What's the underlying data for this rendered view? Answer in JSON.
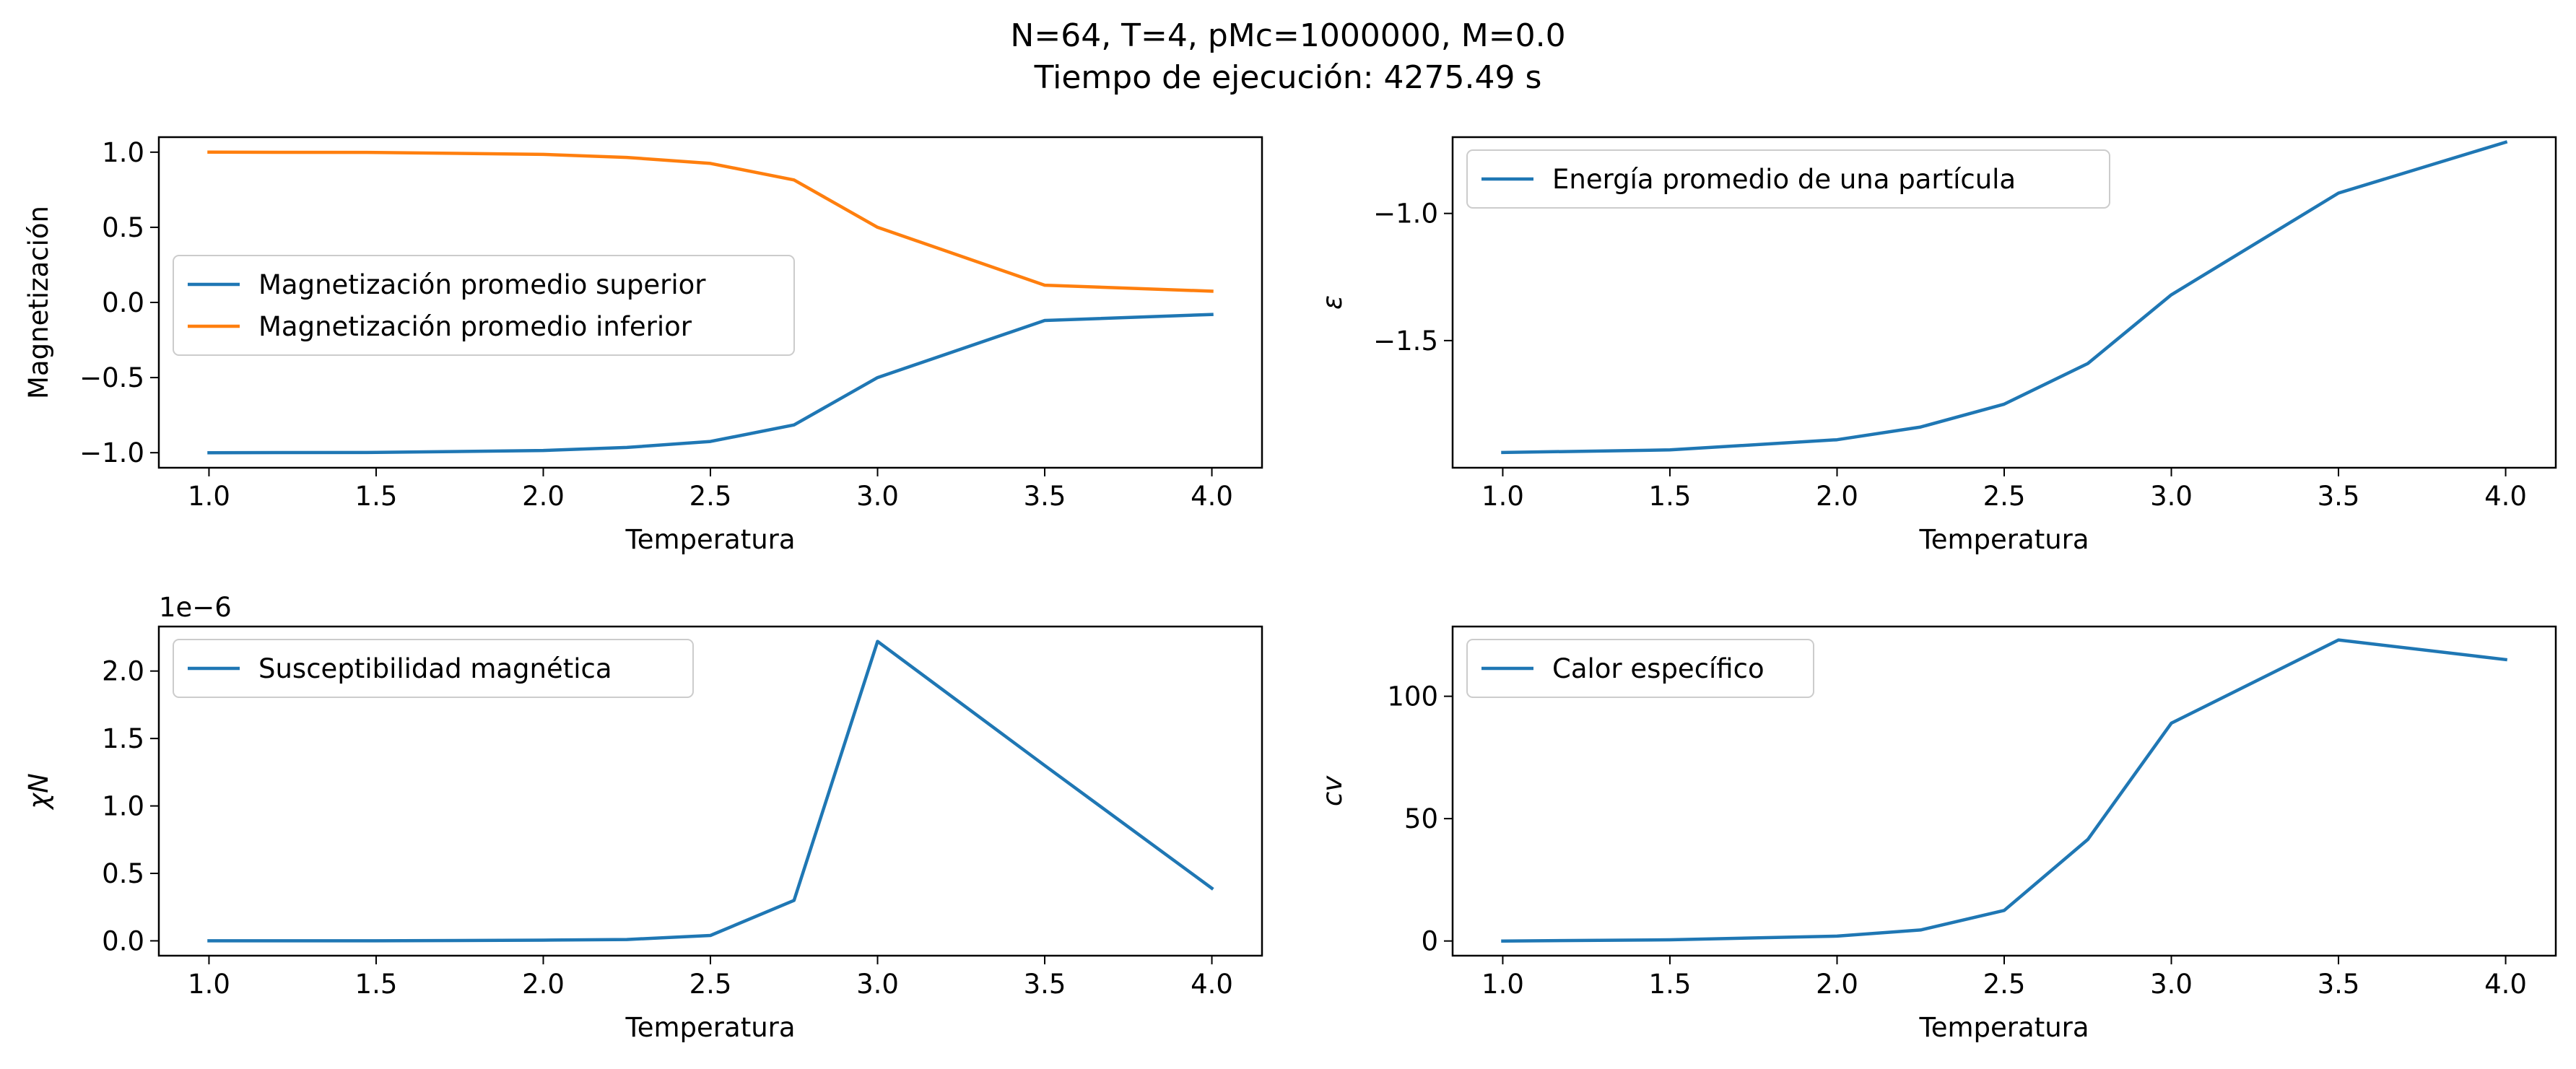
{
  "figure": {
    "title_line1": "N=64, T=4, pMc=1000000, M=0.0",
    "title_line2": "Tiempo de ejecución: 4275.49 s"
  },
  "colors": {
    "blue": "#1f77b4",
    "orange": "#ff7f0e"
  },
  "chart_data": [
    {
      "type": "line",
      "xlabel": "Temperatura",
      "ylabel": "Magnetización",
      "x": [
        1.0,
        1.5,
        2.0,
        2.25,
        2.5,
        2.75,
        3.0,
        3.5,
        4.0
      ],
      "xticks": [
        1.0,
        1.5,
        2.0,
        2.5,
        3.0,
        3.5,
        4.0
      ],
      "xtick_labels": [
        "1.0",
        "1.5",
        "2.0",
        "2.5",
        "3.0",
        "3.5",
        "4.0"
      ],
      "xlim": [
        0.85,
        4.15
      ],
      "ylim": [
        -1.1,
        1.1
      ],
      "yticks": [
        -1.0,
        -0.5,
        0.0,
        0.5,
        1.0
      ],
      "ytick_labels": [
        "−1.0",
        "−0.5",
        "0.0",
        "0.5",
        "1.0"
      ],
      "legend_position": "center-left",
      "series": [
        {
          "name": "Magnetización promedio superior",
          "color": "#1f77b4",
          "values": [
            -1.0,
            -0.998,
            -0.985,
            -0.965,
            -0.925,
            -0.815,
            -0.5,
            -0.12,
            -0.08
          ]
        },
        {
          "name": "Magnetización promedio inferior",
          "color": "#ff7f0e",
          "values": [
            1.0,
            0.998,
            0.985,
            0.965,
            0.925,
            0.815,
            0.5,
            0.115,
            0.075
          ]
        }
      ]
    },
    {
      "type": "line",
      "xlabel": "Temperatura",
      "ylabel": "ε",
      "x": [
        1.0,
        1.5,
        2.0,
        2.25,
        2.5,
        2.75,
        3.0,
        3.5,
        4.0
      ],
      "xticks": [
        1.0,
        1.5,
        2.0,
        2.5,
        3.0,
        3.5,
        4.0
      ],
      "xtick_labels": [
        "1.0",
        "1.5",
        "2.0",
        "2.5",
        "3.0",
        "3.5",
        "4.0"
      ],
      "xlim": [
        0.85,
        4.15
      ],
      "ylim": [
        -2.0,
        -0.7
      ],
      "yticks": [
        -1.5,
        -1.0
      ],
      "ytick_labels": [
        "−1.5",
        "−1.0"
      ],
      "legend_position": "upper-left",
      "series": [
        {
          "name": "Energía promedio de una partícula",
          "color": "#1f77b4",
          "values": [
            -1.94,
            -1.93,
            -1.89,
            -1.84,
            -1.75,
            -1.59,
            -1.32,
            -0.92,
            -0.72
          ]
        }
      ]
    },
    {
      "type": "line",
      "xlabel": "Temperatura",
      "ylabel": "χN",
      "offset_text": "1e−6",
      "x": [
        1.0,
        1.5,
        2.0,
        2.25,
        2.5,
        2.75,
        3.0,
        3.5,
        4.0
      ],
      "xticks": [
        1.0,
        1.5,
        2.0,
        2.5,
        3.0,
        3.5,
        4.0
      ],
      "xtick_labels": [
        "1.0",
        "1.5",
        "2.0",
        "2.5",
        "3.0",
        "3.5",
        "4.0"
      ],
      "xlim": [
        0.85,
        4.15
      ],
      "ylim": [
        -0.11,
        2.33
      ],
      "yticks": [
        0.0,
        0.5,
        1.0,
        1.5,
        2.0
      ],
      "ytick_labels": [
        "0.0",
        "0.5",
        "1.0",
        "1.5",
        "2.0"
      ],
      "legend_position": "upper-left",
      "series": [
        {
          "name": "Susceptibilidad magnética",
          "color": "#1f77b4",
          "values": [
            0.0,
            0.0,
            0.005,
            0.01,
            0.04,
            0.3,
            2.22,
            1.3,
            0.39
          ]
        }
      ]
    },
    {
      "type": "line",
      "xlabel": "Temperatura",
      "ylabel": "cv",
      "x": [
        1.0,
        1.5,
        2.0,
        2.25,
        2.5,
        2.75,
        3.0,
        3.5,
        4.0
      ],
      "xticks": [
        1.0,
        1.5,
        2.0,
        2.5,
        3.0,
        3.5,
        4.0
      ],
      "xtick_labels": [
        "1.0",
        "1.5",
        "2.0",
        "2.5",
        "3.0",
        "3.5",
        "4.0"
      ],
      "xlim": [
        0.85,
        4.15
      ],
      "ylim": [
        -6.0,
        128.5
      ],
      "yticks": [
        0,
        50,
        100
      ],
      "ytick_labels": [
        "0",
        "50",
        "100"
      ],
      "legend_position": "upper-left",
      "series": [
        {
          "name": "Calor específico",
          "color": "#1f77b4",
          "values": [
            0,
            0.5,
            2,
            4.5,
            12.5,
            41.5,
            89,
            123,
            115
          ]
        }
      ]
    }
  ]
}
